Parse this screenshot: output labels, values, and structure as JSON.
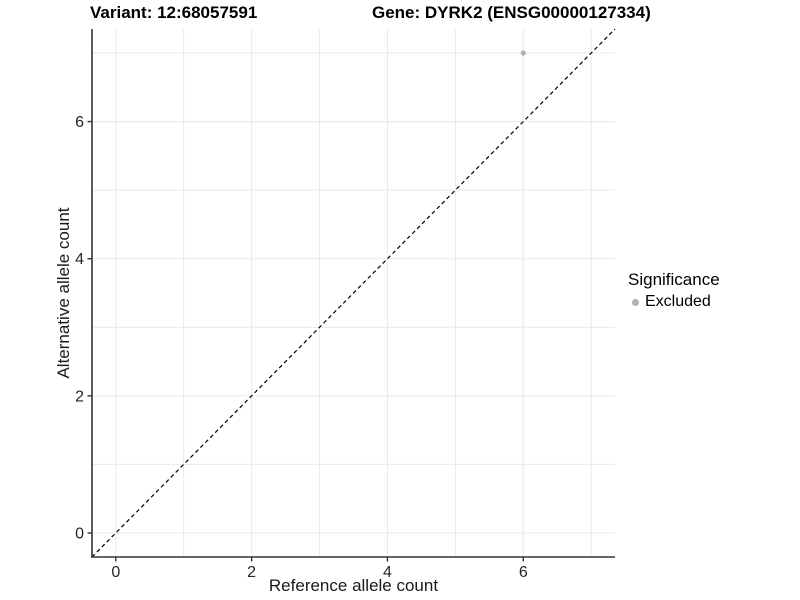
{
  "chart_data": {
    "type": "scatter",
    "title_left": "Variant: 12:68057591",
    "title_right": "Gene: DYRK2 (ENSG00000127334)",
    "xlabel": "Reference allele count",
    "ylabel": "Alternative allele count",
    "xlim": [
      -0.35,
      7.35
    ],
    "ylim": [
      -0.35,
      7.35
    ],
    "x_ticks": [
      0,
      2,
      4,
      6
    ],
    "y_ticks": [
      0,
      2,
      4,
      6
    ],
    "grid": {
      "show": true,
      "lines_at_integers": true,
      "color": "#e9e9e9"
    },
    "identity_line": {
      "equation": "y = x",
      "style": "dashed",
      "color": "#000000"
    },
    "series": [
      {
        "name": "Excluded",
        "color": "#b0b0b0",
        "points": [
          [
            6,
            7
          ]
        ]
      }
    ],
    "legend": {
      "title": "Significance",
      "position": "right",
      "entries": [
        {
          "label": "Excluded",
          "color": "#b0b0b0"
        }
      ]
    },
    "colors": {
      "axis_line": "#333333",
      "tick_mark": "#333333",
      "tick_label": "#262626",
      "background": "#ffffff"
    }
  }
}
